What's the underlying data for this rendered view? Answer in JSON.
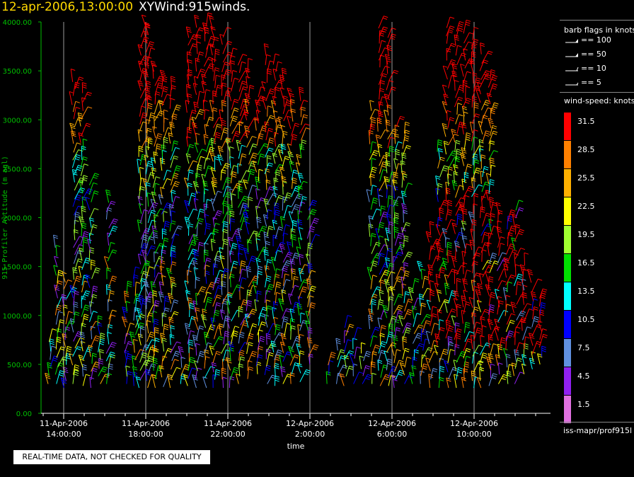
{
  "title": {
    "datetime": "12-apr-2006,13:00:00",
    "name": "XYWind:915winds."
  },
  "chart_data": {
    "type": "wind-barb time-height plot",
    "ylabel": "915 Profiler Altitude (m agl)",
    "xlabel": "time",
    "ylim": [
      0,
      4000
    ],
    "yticks": [
      "0.00",
      "500.00",
      "1000.00",
      "1500.00",
      "2000.00",
      "2500.00",
      "3000.00",
      "3500.00",
      "4000.00"
    ],
    "xticks": [
      {
        "date": "11-Apr-2006",
        "time": "14:00:00"
      },
      {
        "date": "11-Apr-2006",
        "time": "18:00:00"
      },
      {
        "date": "11-Apr-2006",
        "time": "22:00:00"
      },
      {
        "date": "12-Apr-2006",
        "time": "2:00:00"
      },
      {
        "date": "12-Apr-2006",
        "time": "6:00:00"
      },
      {
        "date": "12-Apr-2006",
        "time": "10:00:00"
      }
    ],
    "grid": "vertical lines at major time ticks"
  },
  "legend": {
    "flags_title": "barb flags in knots",
    "flags": [
      "== 100",
      "== 50",
      "== 10",
      "== 5"
    ],
    "speed_title": "wind-speed: knots",
    "speeds": [
      {
        "label": "31.5",
        "color": "#ff0000"
      },
      {
        "label": "28.5",
        "color": "#ff8000"
      },
      {
        "label": "25.5",
        "color": "#ffb000"
      },
      {
        "label": "22.5",
        "color": "#ffff00"
      },
      {
        "label": "19.5",
        "color": "#a0ff30"
      },
      {
        "label": "16.5",
        "color": "#00e000"
      },
      {
        "label": "13.5",
        "color": "#00ffff"
      },
      {
        "label": "10.5",
        "color": "#0000ff"
      },
      {
        "label": "7.5",
        "color": "#6090e0"
      },
      {
        "label": "4.5",
        "color": "#9020f0"
      },
      {
        "label": "1.5",
        "color": "#e070e0"
      }
    ]
  },
  "source": "iss-mapr/prof915l",
  "quality_note": "REAL-TIME DATA, NOT CHECKED FOR QUALITY"
}
